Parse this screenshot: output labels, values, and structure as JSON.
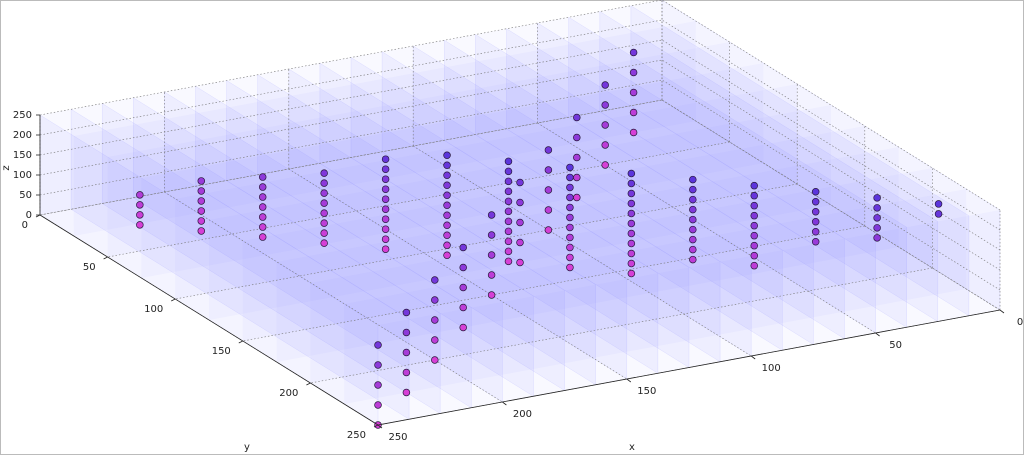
{
  "chart_data": {
    "type": "scatter3d",
    "xlabel": "x",
    "ylabel": "y",
    "zlabel": "z",
    "xlim": [
      0,
      250
    ],
    "ylim": [
      0,
      250
    ],
    "zlim": [
      0,
      250
    ],
    "xticks": [
      0,
      50,
      100,
      150,
      200,
      250
    ],
    "yticks": [
      0,
      50,
      100,
      150,
      200,
      250
    ],
    "zticks": [
      0,
      50,
      100,
      150,
      200,
      250
    ],
    "grid": true,
    "color_low": "#d63fd6",
    "color_high": "#5b35dc",
    "series": [
      {
        "x": [
          224,
          224,
          224,
          224
        ],
        "y": [
          26,
          26,
          26,
          26
        ],
        "z": [
          0,
          25,
          50,
          75
        ]
      },
      {
        "x": [
          208,
          208,
          208,
          208,
          208,
          208
        ],
        "y": [
          42,
          42,
          42,
          42,
          42,
          42
        ],
        "z": [
          0,
          25,
          50,
          75,
          100,
          125
        ]
      },
      {
        "x": [
          192,
          192,
          192,
          192,
          192,
          192,
          192
        ],
        "y": [
          58,
          58,
          58,
          58,
          58,
          58,
          58
        ],
        "z": [
          0,
          25,
          50,
          75,
          100,
          125,
          150
        ]
      },
      {
        "x": [
          176,
          176,
          176,
          176,
          176,
          176,
          176,
          176
        ],
        "y": [
          74,
          74,
          74,
          74,
          74,
          74,
          74,
          74
        ],
        "z": [
          0,
          25,
          50,
          75,
          100,
          125,
          150,
          175
        ]
      },
      {
        "x": [
          160,
          160,
          160,
          160,
          160,
          160,
          160,
          160,
          160,
          160
        ],
        "y": [
          90,
          90,
          90,
          90,
          90,
          90,
          90,
          90,
          90,
          90
        ],
        "z": [
          0,
          25,
          50,
          75,
          100,
          125,
          150,
          175,
          200,
          225
        ]
      },
      {
        "x": [
          144,
          144,
          144,
          144,
          144,
          144,
          144,
          144,
          144,
          144,
          144
        ],
        "y": [
          106,
          106,
          106,
          106,
          106,
          106,
          106,
          106,
          106,
          106,
          106
        ],
        "z": [
          0,
          25,
          50,
          75,
          100,
          125,
          150,
          175,
          200,
          225,
          250
        ]
      },
      {
        "x": [
          128,
          128,
          128,
          128,
          128,
          128,
          128,
          128,
          128,
          128,
          128
        ],
        "y": [
          122,
          122,
          122,
          122,
          122,
          122,
          122,
          122,
          122,
          122,
          122
        ],
        "z": [
          0,
          25,
          50,
          75,
          100,
          125,
          150,
          175,
          200,
          225,
          250
        ]
      },
      {
        "x": [
          112,
          112,
          112,
          112,
          112,
          112,
          112,
          112,
          112,
          112,
          112
        ],
        "y": [
          138,
          138,
          138,
          138,
          138,
          138,
          138,
          138,
          138,
          138,
          138
        ],
        "z": [
          0,
          25,
          50,
          75,
          100,
          125,
          150,
          175,
          200,
          225,
          250
        ]
      },
      {
        "x": [
          96,
          96,
          96,
          96,
          96,
          96,
          96,
          96,
          96,
          96,
          96
        ],
        "y": [
          154,
          154,
          154,
          154,
          154,
          154,
          154,
          154,
          154,
          154,
          154
        ],
        "z": [
          0,
          25,
          50,
          75,
          100,
          125,
          150,
          175,
          200,
          225,
          250
        ]
      },
      {
        "x": [
          80,
          80,
          80,
          80,
          80,
          80,
          80,
          80,
          80
        ],
        "y": [
          170,
          170,
          170,
          170,
          170,
          170,
          170,
          170,
          170
        ],
        "z": [
          50,
          75,
          100,
          125,
          150,
          175,
          200,
          225,
          250
        ]
      },
      {
        "x": [
          64,
          64,
          64,
          64,
          64,
          64,
          64,
          64,
          64
        ],
        "y": [
          186,
          186,
          186,
          186,
          186,
          186,
          186,
          186,
          186
        ],
        "z": [
          50,
          75,
          100,
          125,
          150,
          175,
          200,
          225,
          250
        ]
      },
      {
        "x": [
          48,
          48,
          48,
          48,
          48,
          48
        ],
        "y": [
          202,
          202,
          202,
          202,
          202,
          202
        ],
        "z": [
          125,
          150,
          175,
          200,
          225,
          250
        ]
      },
      {
        "x": [
          32,
          32,
          32,
          32,
          32
        ],
        "y": [
          218,
          218,
          218,
          218,
          218
        ],
        "z": [
          150,
          175,
          200,
          225,
          250
        ]
      },
      {
        "x": [
          16,
          16
        ],
        "y": [
          234,
          234
        ],
        "z": [
          225,
          250
        ]
      },
      {
        "x": [
          250,
          225,
          200,
          175,
          150,
          125,
          100,
          75,
          50,
          25
        ],
        "y": [
          250,
          225,
          200,
          175,
          150,
          125,
          100,
          75,
          50,
          25
        ],
        "z": [
          0,
          0,
          0,
          0,
          0,
          0,
          0,
          0,
          0,
          0
        ]
      },
      {
        "x": [
          250,
          225,
          200,
          175,
          150,
          125,
          100,
          75,
          50,
          25
        ],
        "y": [
          250,
          225,
          200,
          175,
          150,
          125,
          100,
          75,
          50,
          25
        ],
        "z": [
          50,
          50,
          50,
          50,
          50,
          50,
          50,
          50,
          50,
          50
        ]
      },
      {
        "x": [
          250,
          225,
          200,
          175,
          150,
          125,
          100,
          75,
          50,
          25
        ],
        "y": [
          250,
          225,
          200,
          175,
          150,
          125,
          100,
          75,
          50,
          25
        ],
        "z": [
          100,
          100,
          100,
          100,
          100,
          100,
          100,
          100,
          100,
          100
        ]
      },
      {
        "x": [
          250,
          225,
          200,
          175,
          150,
          125,
          100,
          75,
          50,
          25
        ],
        "y": [
          250,
          225,
          200,
          175,
          150,
          125,
          100,
          75,
          50,
          25
        ],
        "z": [
          150,
          150,
          150,
          150,
          150,
          150,
          150,
          150,
          150,
          150
        ]
      },
      {
        "x": [
          250,
          225,
          200,
          175,
          150,
          125,
          100,
          75,
          50,
          25
        ],
        "y": [
          250,
          225,
          200,
          175,
          150,
          125,
          100,
          75,
          50,
          25
        ],
        "z": [
          200,
          200,
          200,
          200,
          200,
          200,
          200,
          200,
          200,
          200
        ]
      }
    ]
  }
}
